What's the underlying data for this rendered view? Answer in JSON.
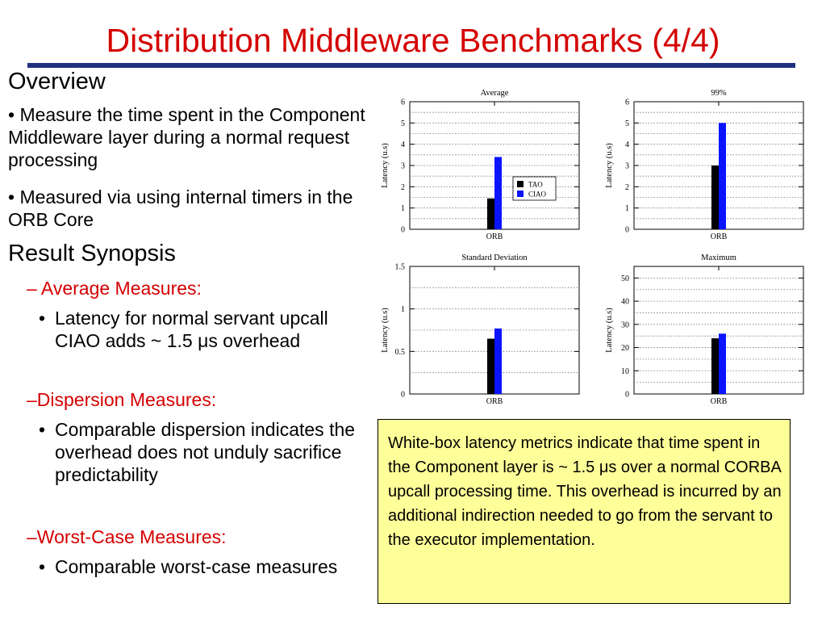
{
  "slide": {
    "title": "Distribution Middleware Benchmarks (4/4)",
    "overview_heading": "Overview",
    "overview_bullets": [
      "• Measure the time spent in the Component Middleware layer during a normal request processing",
      "• Measured via using internal timers in the ORB Core"
    ],
    "synopsis_heading": "Result Synopsis",
    "synopsis_sections": [
      {
        "heading": "– Average Measures:",
        "bullets": [
          "Latency for normal servant upcall CIAO adds ~ 1.5 μs overhead"
        ]
      },
      {
        "heading": "–Dispersion Measures:",
        "bullets": [
          "Comparable dispersion indicates the overhead does not unduly sacrifice predictability"
        ]
      },
      {
        "heading": "–Worst-Case Measures:",
        "bullets": [
          "Comparable worst-case measures"
        ]
      }
    ],
    "bullet_glyph": "•",
    "note": "White-box latency metrics indicate that time spent in the Component layer is ~ 1.5 μs over a normal CORBA upcall processing time.  This overhead is incurred by an additional indirection needed to go from the servant to the executor implementation.",
    "colors": {
      "title": "#d40000",
      "rule": "#1f3180",
      "tao": "#000000",
      "ciao": "#0a14ff",
      "note_bg": "#ffff99"
    }
  },
  "chart_data": [
    {
      "type": "bar",
      "title": "Average",
      "categories": [
        "ORB"
      ],
      "series": [
        {
          "name": "TAO",
          "values": [
            1.45
          ]
        },
        {
          "name": "CIAO",
          "values": [
            3.4
          ]
        }
      ],
      "ylabel": "Latency (u.s)",
      "xlabel": "",
      "ylim": [
        0,
        6
      ],
      "yticks": [
        0,
        1,
        2,
        3,
        4,
        5,
        6
      ],
      "ytick_labels": [
        "0",
        "1",
        "2",
        "3",
        "4",
        "5",
        "6"
      ],
      "grid": true,
      "legend": "inside-right"
    },
    {
      "type": "bar",
      "title": "99%",
      "categories": [
        "ORB"
      ],
      "series": [
        {
          "name": "TAO",
          "values": [
            3.0
          ]
        },
        {
          "name": "CIAO",
          "values": [
            5.0
          ]
        }
      ],
      "ylabel": "Latency (u.s)",
      "xlabel": "",
      "ylim": [
        0,
        6
      ],
      "yticks": [
        0,
        1,
        2,
        3,
        4,
        5,
        6
      ],
      "ytick_labels": [
        "0",
        "1",
        "2",
        "3",
        "4",
        "5",
        "6"
      ],
      "grid": true
    },
    {
      "type": "bar",
      "title": "Standard Deviation",
      "categories": [
        "ORB"
      ],
      "series": [
        {
          "name": "TAO",
          "values": [
            0.65
          ]
        },
        {
          "name": "CIAO",
          "values": [
            0.77
          ]
        }
      ],
      "ylabel": "Latency (u.s)",
      "xlabel": "",
      "ylim": [
        0,
        1.5
      ],
      "yticks": [
        0,
        0.5,
        1,
        1.5
      ],
      "ytick_labels": [
        "0",
        "0.5",
        "1",
        "1.5"
      ],
      "grid": true
    },
    {
      "type": "bar",
      "title": "Maximum",
      "categories": [
        "ORB"
      ],
      "series": [
        {
          "name": "TAO",
          "values": [
            24
          ]
        },
        {
          "name": "CIAO",
          "values": [
            26
          ]
        }
      ],
      "ylabel": "Latency (u.s)",
      "xlabel": "",
      "ylim": [
        0,
        55
      ],
      "yticks": [
        0,
        10,
        20,
        30,
        40,
        50
      ],
      "ytick_labels": [
        "0",
        "10",
        "20",
        "30",
        "40",
        "50"
      ],
      "grid": true
    }
  ]
}
